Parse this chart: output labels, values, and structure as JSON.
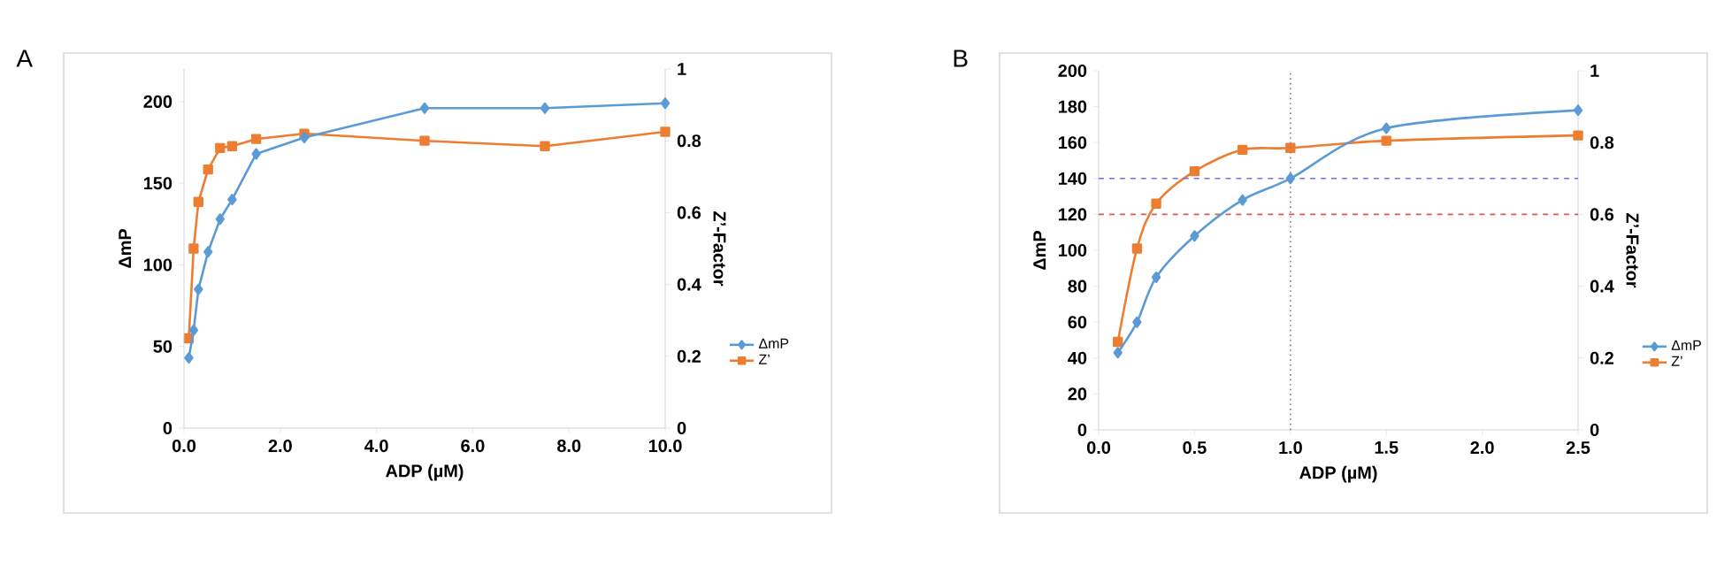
{
  "chart_data": [
    {
      "type": "line",
      "annotations": [
        "A"
      ],
      "xlabel": "ADP  (µM)",
      "ylabel": "ΔmP",
      "y2label": "Z’-Factor",
      "x": [
        0.1,
        0.2,
        0.3,
        0.5,
        0.75,
        1.0,
        1.5,
        2.5,
        5.0,
        7.5,
        10.0
      ],
      "series": [
        {
          "name": "ΔmP",
          "color": "#5b9bd5",
          "marker": "diamond",
          "values": [
            43,
            60,
            85,
            108,
            128,
            140,
            168,
            178,
            196,
            196,
            199
          ]
        },
        {
          "name": "Z’",
          "color": "#ed7d31",
          "marker": "square",
          "axis": "y2",
          "values": [
            0.25,
            0.5,
            0.63,
            0.72,
            0.78,
            0.785,
            0.805,
            0.82,
            0.8,
            0.785,
            0.825
          ]
        }
      ],
      "xlim": [
        0,
        10
      ],
      "xticks": [
        {
          "value": 0,
          "label": "0.0"
        },
        {
          "value": 2,
          "label": "2.0"
        },
        {
          "value": 4,
          "label": "4.0"
        },
        {
          "value": 6,
          "label": "6.0"
        },
        {
          "value": 8,
          "label": "8.0"
        },
        {
          "value": 10,
          "label": "10.0"
        }
      ],
      "ylim": [
        0,
        220
      ],
      "yticks": [
        0,
        50,
        100,
        150,
        200
      ],
      "y2lim": [
        0,
        1
      ],
      "y2ticks": [
        0,
        0.2,
        0.4,
        0.6,
        0.8,
        1
      ],
      "legend": "right"
    },
    {
      "type": "line",
      "annotations": [
        "B"
      ],
      "xlabel": "ADP  (µM)",
      "ylabel": "ΔmP",
      "y2label": "Z’-Factor",
      "x": [
        0.1,
        0.2,
        0.3,
        0.5,
        0.75,
        1.0,
        1.5,
        2.5
      ],
      "series": [
        {
          "name": "ΔmP",
          "color": "#5b9bd5",
          "marker": "diamond",
          "values": [
            43,
            60,
            85,
            108,
            128,
            140,
            168,
            178
          ]
        },
        {
          "name": "Z’",
          "color": "#ed7d31",
          "marker": "square",
          "axis": "y2",
          "values": [
            0.245,
            0.505,
            0.63,
            0.72,
            0.78,
            0.785,
            0.805,
            0.82
          ]
        }
      ],
      "xlim": [
        0,
        2.5
      ],
      "xticks": [
        {
          "value": 0,
          "label": "0.0"
        },
        {
          "value": 0.5,
          "label": "0.5"
        },
        {
          "value": 1,
          "label": "1.0"
        },
        {
          "value": 1.5,
          "label": "1.5"
        },
        {
          "value": 2,
          "label": "2.0"
        },
        {
          "value": 2.5,
          "label": "2.5"
        }
      ],
      "ylim": [
        0,
        200
      ],
      "yticks": [
        0,
        20,
        40,
        60,
        80,
        100,
        120,
        140,
        160,
        180,
        200
      ],
      "y2lim": [
        0,
        1
      ],
      "y2ticks": [
        0,
        0.2,
        0.4,
        0.6,
        0.8,
        1
      ],
      "ref_lines": [
        {
          "axis": "y",
          "value": 140,
          "color": "#7070ff",
          "line_style": "dashed"
        },
        {
          "axis": "y",
          "value": 120,
          "color": "#e05555",
          "line_style": "dashed"
        },
        {
          "axis": "x",
          "value": 1.0,
          "color": "#808080",
          "line_style": "dotted"
        }
      ],
      "legend": "right"
    }
  ]
}
